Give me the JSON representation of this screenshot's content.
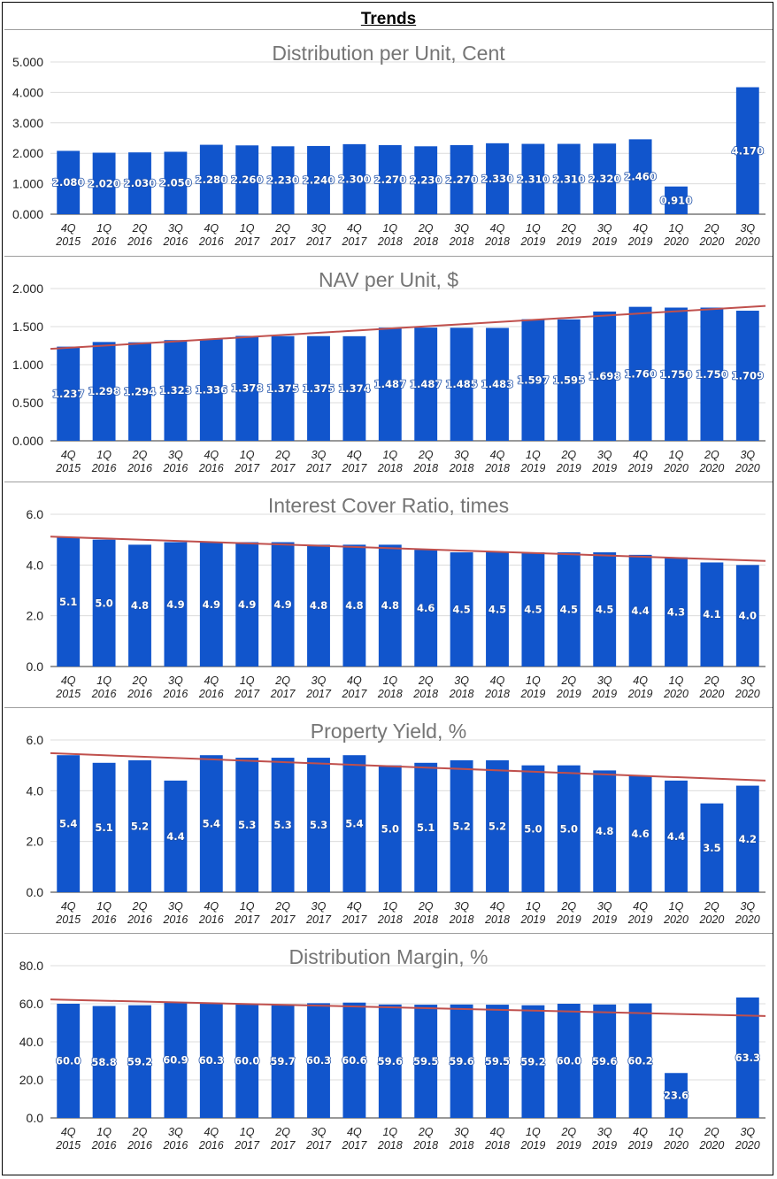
{
  "page": {
    "title": "Trends"
  },
  "colors": {
    "bar": "#1155cc",
    "trend": "#c0504d",
    "grid": "#dcdcdc",
    "title": "#757575"
  },
  "chart_data": [
    {
      "type": "bar",
      "title": "Distribution per Unit, Cent",
      "quarters": [
        "4Q",
        "1Q",
        "2Q",
        "3Q",
        "4Q",
        "1Q",
        "2Q",
        "3Q",
        "4Q",
        "1Q",
        "2Q",
        "3Q",
        "4Q",
        "1Q",
        "2Q",
        "3Q",
        "4Q",
        "1Q",
        "2Q",
        "3Q"
      ],
      "years": [
        "2015",
        "2016",
        "2016",
        "2016",
        "2016",
        "2017",
        "2017",
        "2017",
        "2017",
        "2018",
        "2018",
        "2018",
        "2018",
        "2019",
        "2019",
        "2019",
        "2019",
        "2020",
        "2020",
        "2020"
      ],
      "values": [
        2.08,
        2.02,
        2.03,
        2.05,
        2.28,
        2.26,
        2.23,
        2.24,
        2.3,
        2.27,
        2.23,
        2.27,
        2.33,
        2.31,
        2.31,
        2.32,
        2.46,
        0.91,
        null,
        4.17
      ],
      "value_labels": [
        "2.080",
        "2.020",
        "2.030",
        "2.050",
        "2.280",
        "2.260",
        "2.230",
        "2.240",
        "2.300",
        "2.270",
        "2.230",
        "2.270",
        "2.330",
        "2.310",
        "2.310",
        "2.320",
        "2.460",
        "0.910",
        "",
        "4.170"
      ],
      "ylim": [
        0,
        5
      ],
      "yticks": [
        "0.000",
        "1.000",
        "2.000",
        "3.000",
        "4.000",
        "5.000"
      ],
      "trendline": false
    },
    {
      "type": "bar",
      "title": "NAV per Unit, $",
      "quarters": [
        "4Q",
        "1Q",
        "2Q",
        "3Q",
        "4Q",
        "1Q",
        "2Q",
        "3Q",
        "4Q",
        "1Q",
        "2Q",
        "3Q",
        "4Q",
        "1Q",
        "2Q",
        "3Q",
        "4Q",
        "1Q",
        "2Q",
        "3Q"
      ],
      "years": [
        "2015",
        "2016",
        "2016",
        "2016",
        "2016",
        "2017",
        "2017",
        "2017",
        "2017",
        "2018",
        "2018",
        "2018",
        "2018",
        "2019",
        "2019",
        "2019",
        "2019",
        "2020",
        "2020",
        "2020"
      ],
      "values": [
        1.237,
        1.298,
        1.294,
        1.323,
        1.336,
        1.378,
        1.375,
        1.375,
        1.374,
        1.487,
        1.487,
        1.485,
        1.483,
        1.597,
        1.595,
        1.698,
        1.76,
        1.75,
        1.75,
        1.709
      ],
      "value_labels": [
        "1.237",
        "1.298",
        "1.294",
        "1.323",
        "1.336",
        "1.378",
        "1.375",
        "1.375",
        "1.374",
        "1.487",
        "1.487",
        "1.485",
        "1.483",
        "1.597",
        "1.595",
        "1.698",
        "1.760",
        "1.750",
        "1.750",
        "1.709"
      ],
      "ylim": [
        0,
        2
      ],
      "yticks": [
        "0.000",
        "0.500",
        "1.000",
        "1.500",
        "2.000"
      ],
      "trendline": true
    },
    {
      "type": "bar",
      "title": "Interest Cover Ratio, times",
      "quarters": [
        "4Q",
        "1Q",
        "2Q",
        "3Q",
        "4Q",
        "1Q",
        "2Q",
        "3Q",
        "4Q",
        "1Q",
        "2Q",
        "3Q",
        "4Q",
        "1Q",
        "2Q",
        "3Q",
        "4Q",
        "1Q",
        "2Q",
        "3Q"
      ],
      "years": [
        "2015",
        "2016",
        "2016",
        "2016",
        "2016",
        "2017",
        "2017",
        "2017",
        "2017",
        "2018",
        "2018",
        "2018",
        "2018",
        "2019",
        "2019",
        "2019",
        "2019",
        "2020",
        "2020",
        "2020"
      ],
      "values": [
        5.1,
        5.0,
        4.8,
        4.9,
        4.9,
        4.9,
        4.9,
        4.8,
        4.8,
        4.8,
        4.6,
        4.5,
        4.5,
        4.5,
        4.5,
        4.5,
        4.4,
        4.3,
        4.1,
        4.0
      ],
      "value_labels": [
        "5.1",
        "5.0",
        "4.8",
        "4.9",
        "4.9",
        "4.9",
        "4.9",
        "4.8",
        "4.8",
        "4.8",
        "4.6",
        "4.5",
        "4.5",
        "4.5",
        "4.5",
        "4.5",
        "4.4",
        "4.3",
        "4.1",
        "4.0"
      ],
      "ylim": [
        0,
        6
      ],
      "yticks": [
        "0.0",
        "2.0",
        "4.0",
        "6.0"
      ],
      "trendline": true
    },
    {
      "type": "bar",
      "title": "Property Yield, %",
      "quarters": [
        "4Q",
        "1Q",
        "2Q",
        "3Q",
        "4Q",
        "1Q",
        "2Q",
        "3Q",
        "4Q",
        "1Q",
        "2Q",
        "3Q",
        "4Q",
        "1Q",
        "2Q",
        "3Q",
        "4Q",
        "1Q",
        "2Q",
        "3Q"
      ],
      "years": [
        "2015",
        "2016",
        "2016",
        "2016",
        "2016",
        "2017",
        "2017",
        "2017",
        "2017",
        "2018",
        "2018",
        "2018",
        "2018",
        "2019",
        "2019",
        "2019",
        "2019",
        "2020",
        "2020",
        "2020"
      ],
      "values": [
        5.4,
        5.1,
        5.2,
        4.4,
        5.4,
        5.3,
        5.3,
        5.3,
        5.4,
        5.0,
        5.1,
        5.2,
        5.2,
        5.0,
        5.0,
        4.8,
        4.6,
        4.4,
        3.5,
        4.2
      ],
      "value_labels": [
        "5.4",
        "5.1",
        "5.2",
        "4.4",
        "5.4",
        "5.3",
        "5.3",
        "5.3",
        "5.4",
        "5.0",
        "5.1",
        "5.2",
        "5.2",
        "5.0",
        "5.0",
        "4.8",
        "4.6",
        "4.4",
        "3.5",
        "4.2"
      ],
      "ylim": [
        0,
        6
      ],
      "yticks": [
        "0.0",
        "2.0",
        "4.0",
        "6.0"
      ],
      "trendline": true
    },
    {
      "type": "bar",
      "title": "Distribution Margin, %",
      "quarters": [
        "4Q",
        "1Q",
        "2Q",
        "3Q",
        "4Q",
        "1Q",
        "2Q",
        "3Q",
        "4Q",
        "1Q",
        "2Q",
        "3Q",
        "4Q",
        "1Q",
        "2Q",
        "3Q",
        "4Q",
        "1Q",
        "2Q",
        "3Q"
      ],
      "years": [
        "2015",
        "2016",
        "2016",
        "2016",
        "2016",
        "2017",
        "2017",
        "2017",
        "2017",
        "2018",
        "2018",
        "2018",
        "2018",
        "2019",
        "2019",
        "2019",
        "2019",
        "2020",
        "2020",
        "2020"
      ],
      "values": [
        60.0,
        58.8,
        59.2,
        60.9,
        60.3,
        60.0,
        59.7,
        60.3,
        60.6,
        59.6,
        59.5,
        59.6,
        59.5,
        59.2,
        60.0,
        59.6,
        60.2,
        23.6,
        null,
        63.3
      ],
      "value_labels": [
        "60.0",
        "58.8",
        "59.2",
        "60.9",
        "60.3",
        "60.0",
        "59.7",
        "60.3",
        "60.6",
        "59.6",
        "59.5",
        "59.6",
        "59.5",
        "59.2",
        "60.0",
        "59.6",
        "60.2",
        "23.6",
        "",
        "63.3"
      ],
      "ylim": [
        0,
        80
      ],
      "yticks": [
        "0.0",
        "20.0",
        "40.0",
        "60.0",
        "80.0"
      ],
      "trendline": true
    }
  ]
}
